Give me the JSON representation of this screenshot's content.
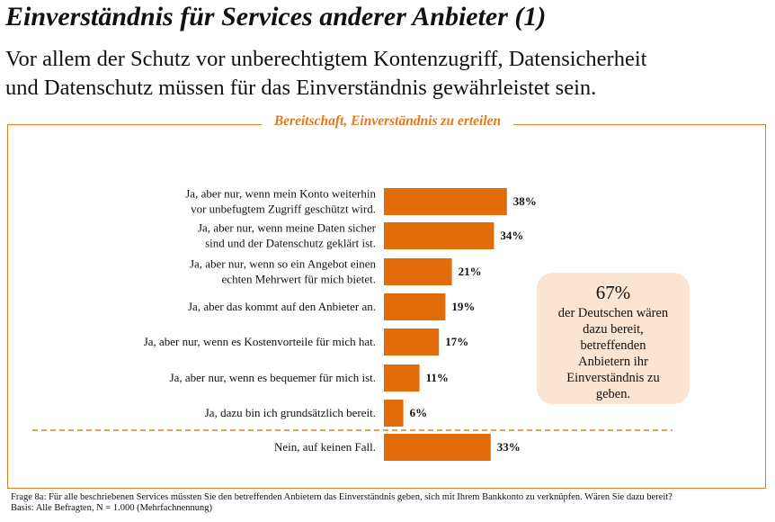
{
  "header": {
    "title": "Einverständnis für Services anderer Anbieter (1)",
    "subtitle_line1": "Vor allem der Schutz vor unberechtigtem Kontenzugriff, Datensicherheit",
    "subtitle_line2": "und Datenschutz müssen für das Einverständnis gewährleistet sein."
  },
  "chart_data": {
    "type": "bar",
    "orientation": "horizontal",
    "title": "Bereitschaft, Einverständnis zu erteilen",
    "categories": [
      [
        "Ja, aber nur, wenn mein Konto weiterhin",
        "vor unbefugtem Zugriff geschützt wird."
      ],
      [
        "Ja, aber nur, wenn meine Daten sicher",
        "sind und der Datenschutz geklärt ist."
      ],
      [
        "Ja, aber nur, wenn so ein Angebot einen",
        "echten Mehrwert für mich bietet."
      ],
      [
        "Ja, aber das kommt auf den Anbieter an."
      ],
      [
        "Ja, aber nur, wenn es Kostenvorteile für mich hat."
      ],
      [
        "Ja, aber nur, wenn es bequemer für mich ist."
      ],
      [
        "Ja, dazu bin ich grundsätzlich bereit."
      ],
      [
        "Nein, auf keinen Fall."
      ]
    ],
    "values": [
      38,
      34,
      21,
      19,
      17,
      11,
      6,
      33
    ],
    "value_labels": [
      "38%",
      "34%",
      "21%",
      "19%",
      "17%",
      "11%",
      "6%",
      "33%"
    ],
    "unit": "%",
    "bar_color": "#e36c0a",
    "separator_before_index": 7,
    "grid": false
  },
  "callout": {
    "big": "67%",
    "text_lines": [
      "der Deutschen wären",
      "dazu bereit,",
      "betreffenden",
      "Anbietern ihr",
      "Einverständnis zu",
      "geben."
    ]
  },
  "footnote": {
    "line1": "Frage 8a: Für alle beschriebenen Services müssten Sie den betreffenden Anbietern das Einverständnis geben, sich mit Ihrem Bankkonto zu verknüpfen. Wären Sie dazu bereit?",
    "line2": "Basis: Alle Befragten, N = 1.000 (Mehrfachnennung)"
  },
  "colors": {
    "accent": "#e07a1e",
    "callout_bg": "#fbe4d2"
  }
}
